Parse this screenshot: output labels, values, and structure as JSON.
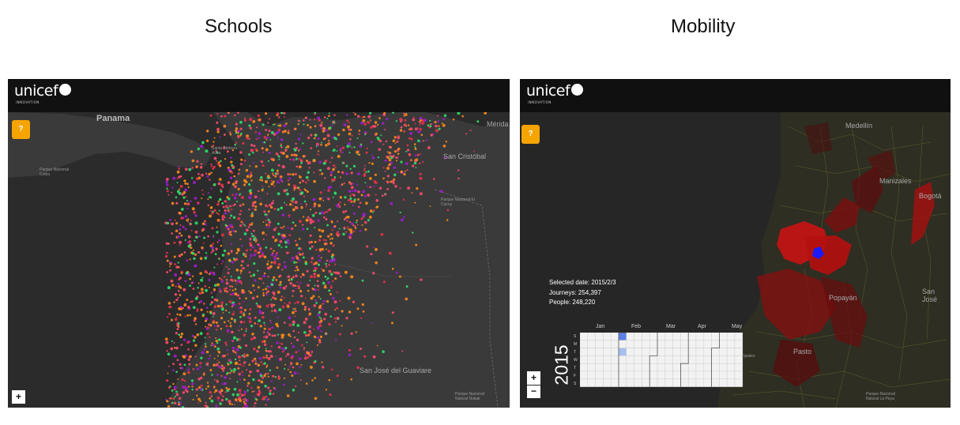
{
  "titles": {
    "left": "Schools",
    "right": "Mobility"
  },
  "left_map": {
    "logo": "unicef",
    "logo_sub": "INNOVATION",
    "help_label": "?",
    "zoom_in_label": "+",
    "places": {
      "panama": "Panama",
      "merida": "Mérida",
      "san_cristobal": "San Cristóbal",
      "park_coiba": "Parque Nacional Coiba",
      "santa_barbara": "Santa Bárbara Acha",
      "san_jose": "San José del Guaviare",
      "park_right": "Parque Nacional Natural Nukak",
      "corner_right_top": "Parque Nacional El Cocuy"
    },
    "colors": {
      "orange": "#ff8a1c",
      "pink": "#ff4a6e",
      "red": "#e8304b",
      "purple": "#a01cd0",
      "green": "#2fe06c"
    }
  },
  "right_map": {
    "logo": "unicef",
    "logo_sub": "INNOVATION",
    "help_label": "?",
    "zoom_in_label": "+",
    "zoom_out_label": "−",
    "places": {
      "medellin": "Medellín",
      "manizales": "Manizales",
      "bogota": "Bogotá",
      "popayan": "Popayán",
      "pasto": "Pasto",
      "san_jose": "San José",
      "park_bottom": "Parque Nacional Natural La Paya",
      "ipiales": "Ipiales"
    },
    "info": {
      "selected_date": "Selected date: 2015/2/3",
      "journeys": "Journeys: 254,397",
      "people": "People: 248,220"
    },
    "calendar": {
      "year": "2015",
      "months": [
        "Jan",
        "Feb",
        "Mar",
        "Apr",
        "May"
      ],
      "weekdays": [
        "S",
        "M",
        "T",
        "W",
        "T",
        "F",
        "S"
      ]
    },
    "colors": {
      "region_red": "#c01414",
      "selected_blue": "#1a1aff",
      "cal_blue": "#5b7fe6",
      "cal_light_blue": "#a9bff0"
    }
  }
}
